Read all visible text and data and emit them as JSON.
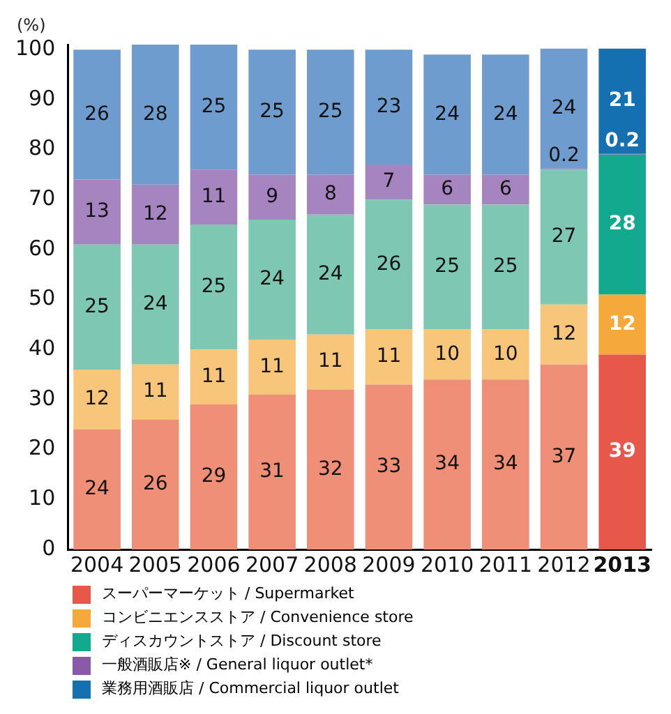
{
  "chart_data": {
    "type": "bar",
    "stacked": true,
    "ylabel": "(%)",
    "categories": [
      "2004",
      "2005",
      "2006",
      "2007",
      "2008",
      "2009",
      "2010",
      "2011",
      "2012",
      "2013"
    ],
    "ylim": [
      0,
      101
    ],
    "yticks": [
      0,
      10,
      20,
      30,
      40,
      50,
      60,
      70,
      80,
      90,
      100
    ],
    "grid": false,
    "legend": "bottom",
    "data_labels": true,
    "series": [
      {
        "name": "スーパーマーケット / Supermarket",
        "color": "#e8584a",
        "colors": [
          "#ef8f78",
          "#ef8f78",
          "#ef8f78",
          "#ef8f78",
          "#ef8f78",
          "#ef8f78",
          "#ef8f78",
          "#ef8f78",
          "#ef8f78",
          "#e8584a"
        ],
        "values": [
          24,
          26,
          29,
          31,
          32,
          33,
          34,
          34,
          37,
          39
        ]
      },
      {
        "name": "コンビニエンスストア / Convenience store",
        "color": "#f5a93a",
        "colors": [
          "#f8c67a",
          "#f8c67a",
          "#f8c67a",
          "#f8c67a",
          "#f8c67a",
          "#f8c67a",
          "#f8c67a",
          "#f8c67a",
          "#f8c67a",
          "#f5a93a"
        ],
        "values": [
          12,
          11,
          11,
          11,
          11,
          11,
          10,
          10,
          12,
          12
        ]
      },
      {
        "name": "ディスカウントストア / Discount store",
        "color": "#12a98e",
        "colors": [
          "#7ec7b2",
          "#7ec7b2",
          "#7ec7b2",
          "#7ec7b2",
          "#7ec7b2",
          "#7ec7b2",
          "#7ec7b2",
          "#7ec7b2",
          "#7ec7b2",
          "#12a98e"
        ],
        "values": [
          25,
          24,
          25,
          24,
          24,
          26,
          25,
          25,
          27,
          28
        ]
      },
      {
        "name": "一般酒販店※ / General liquor outlet*",
        "color": "#8a5aa8",
        "colors": [
          "#a584c0",
          "#a584c0",
          "#a584c0",
          "#a584c0",
          "#a584c0",
          "#a584c0",
          "#a584c0",
          "#a584c0",
          "#a584c0",
          "#8a5aa8"
        ],
        "values": [
          13,
          12,
          11,
          9,
          8,
          7,
          6,
          6,
          0.2,
          0.2
        ]
      },
      {
        "name": "業務用酒販店 / Commercial liquor outlet",
        "color": "#1470b0",
        "colors": [
          "#6f9ccf",
          "#6f9ccf",
          "#6f9ccf",
          "#6f9ccf",
          "#6f9ccf",
          "#6f9ccf",
          "#6f9ccf",
          "#6f9ccf",
          "#6f9ccf",
          "#1470b0"
        ],
        "values": [
          26,
          28,
          25,
          25,
          25,
          23,
          24,
          24,
          24,
          21
        ]
      }
    ]
  }
}
